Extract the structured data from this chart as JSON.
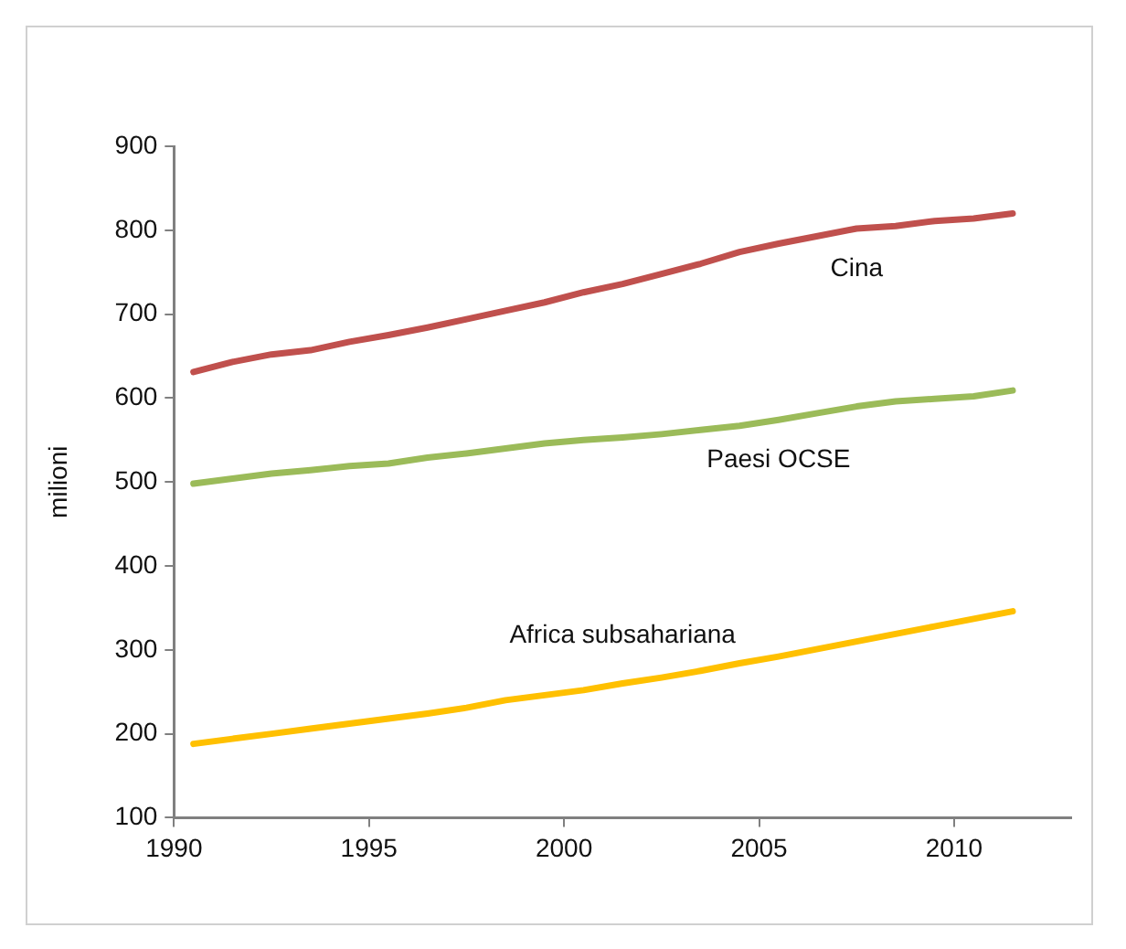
{
  "chart_data": {
    "type": "line",
    "ylabel": "milioni",
    "x": [
      1990.5,
      1991.5,
      1992.5,
      1993.5,
      1994.5,
      1995.5,
      1996.5,
      1997.5,
      1998.5,
      1999.5,
      2000.5,
      2001.5,
      2002.5,
      2003.5,
      2004.5,
      2005.5,
      2006.5,
      2007.5,
      2008.5,
      2009.5,
      2010.5,
      2011.5
    ],
    "series": [
      {
        "name": "Cina",
        "color": "#c0504d",
        "values": [
          631,
          643,
          652,
          657,
          667,
          675,
          684,
          694,
          704,
          714,
          726,
          736,
          748,
          760,
          774,
          784,
          793,
          802,
          805,
          811,
          814,
          820
        ]
      },
      {
        "name": "Paesi OCSE",
        "color": "#9bbb59",
        "values": [
          498,
          504,
          510,
          514,
          519,
          522,
          529,
          534,
          540,
          546,
          550,
          553,
          557,
          562,
          567,
          574,
          582,
          590,
          596,
          599,
          602,
          609
        ]
      },
      {
        "name": "Africa subsahariana",
        "color": "#ffc000",
        "values": [
          188,
          194,
          200,
          206,
          212,
          218,
          224,
          231,
          240,
          246,
          252,
          260,
          267,
          275,
          284,
          292,
          301,
          310,
          319,
          328,
          337,
          346
        ]
      }
    ],
    "xlim": [
      1990,
      2013
    ],
    "xticks": [
      1990,
      1995,
      2000,
      2005,
      2010
    ],
    "ylim": [
      100,
      900
    ],
    "yticks": [
      100,
      200,
      300,
      400,
      500,
      600,
      700,
      800,
      900
    ],
    "grid": false,
    "legend": false,
    "marker": "none",
    "line_style": "solid"
  }
}
